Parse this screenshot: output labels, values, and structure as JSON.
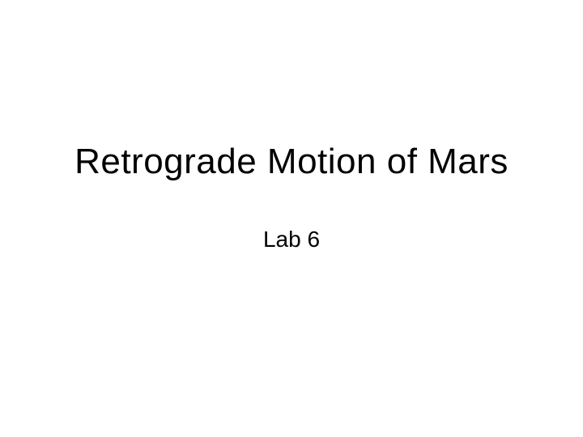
{
  "slide": {
    "title": "Retrograde Motion of Mars",
    "subtitle": "Lab 6",
    "title_fontsize": 44,
    "subtitle_fontsize": 28,
    "title_color": "#000000",
    "subtitle_color": "#000000",
    "background_color": "#ffffff",
    "font_family": "Arial"
  }
}
